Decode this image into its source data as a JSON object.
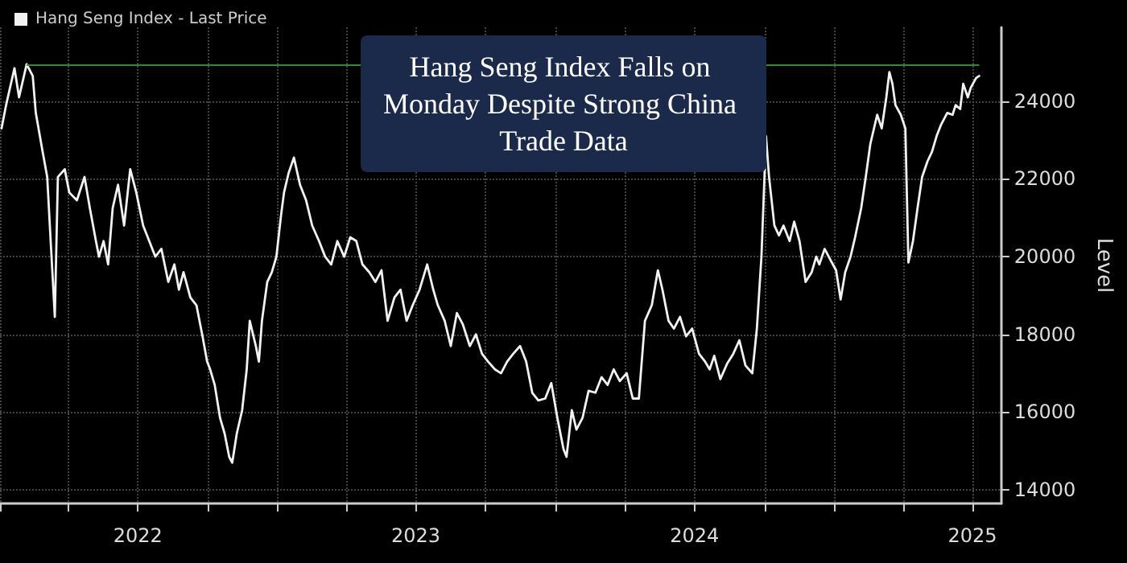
{
  "chart_data": {
    "type": "line",
    "title": "Hang Seng Index Falls on Monday Despite Strong China Trade Data",
    "ylabel": "Level",
    "x": [
      "2022-01-03",
      "2022-01-09",
      "2022-01-20",
      "2022-01-26",
      "2022-02-05",
      "2022-02-13",
      "2022-02-17",
      "2022-02-26",
      "2022-03-04",
      "2022-03-08",
      "2022-03-14",
      "2022-03-18",
      "2022-03-27",
      "2022-04-02",
      "2022-04-12",
      "2022-04-22",
      "2022-04-29",
      "2022-05-07",
      "2022-05-11",
      "2022-05-17",
      "2022-05-23",
      "2022-05-29",
      "2022-06-05",
      "2022-06-13",
      "2022-06-21",
      "2022-06-29",
      "2022-07-08",
      "2022-07-16",
      "2022-07-24",
      "2022-08-01",
      "2022-08-10",
      "2022-08-18",
      "2022-08-24",
      "2022-08-30",
      "2022-09-08",
      "2022-09-16",
      "2022-09-24",
      "2022-09-30",
      "2022-10-04",
      "2022-10-10",
      "2022-10-17",
      "2022-10-23",
      "2022-10-29",
      "2022-11-02",
      "2022-11-08",
      "2022-11-15",
      "2022-11-21",
      "2022-11-25",
      "2022-12-03",
      "2022-12-07",
      "2022-12-11",
      "2022-12-18",
      "2022-12-24",
      "2022-12-30",
      "2023-01-05",
      "2023-01-09",
      "2023-01-15",
      "2023-01-22",
      "2023-01-30",
      "2023-02-07",
      "2023-02-15",
      "2023-02-24",
      "2023-03-04",
      "2023-03-12",
      "2023-03-20",
      "2023-03-29",
      "2023-04-06",
      "2023-04-14",
      "2023-04-22",
      "2023-05-01",
      "2023-05-09",
      "2023-05-17",
      "2023-05-25",
      "2023-06-03",
      "2023-06-11",
      "2023-06-19",
      "2023-06-27",
      "2023-07-06",
      "2023-07-16",
      "2023-07-24",
      "2023-07-30",
      "2023-08-08",
      "2023-08-16",
      "2023-08-24",
      "2023-09-01",
      "2023-09-10",
      "2023-09-18",
      "2023-09-26",
      "2023-10-04",
      "2023-10-13",
      "2023-10-21",
      "2023-10-29",
      "2023-11-06",
      "2023-11-15",
      "2023-11-23",
      "2023-12-01",
      "2023-12-09",
      "2023-12-18",
      "2023-12-26",
      "2024-01-03",
      "2024-01-11",
      "2024-01-15",
      "2024-01-22",
      "2024-01-28",
      "2024-02-05",
      "2024-02-13",
      "2024-02-22",
      "2024-03-01",
      "2024-03-09",
      "2024-03-17",
      "2024-03-25",
      "2024-04-03",
      "2024-04-11",
      "2024-04-19",
      "2024-04-27",
      "2024-05-06",
      "2024-05-14",
      "2024-05-20",
      "2024-05-28",
      "2024-06-04",
      "2024-06-12",
      "2024-06-20",
      "2024-06-28",
      "2024-07-07",
      "2024-07-15",
      "2024-07-21",
      "2024-07-27",
      "2024-08-04",
      "2024-08-13",
      "2024-08-21",
      "2024-08-29",
      "2024-09-06",
      "2024-09-15",
      "2024-09-21",
      "2024-09-27",
      "2024-10-03",
      "2024-10-07",
      "2024-10-14",
      "2024-10-20",
      "2024-10-26",
      "2024-11-03",
      "2024-11-09",
      "2024-11-16",
      "2024-11-24",
      "2024-12-02",
      "2024-12-08",
      "2024-12-12",
      "2024-12-19",
      "2024-12-27",
      "2025-01-03",
      "2025-01-09",
      "2025-01-15",
      "2025-01-22",
      "2025-01-28",
      "2025-02-05",
      "2025-02-11",
      "2025-02-17",
      "2025-02-26",
      "2025-03-04",
      "2025-03-10",
      "2025-03-14",
      "2025-03-18",
      "2025-03-22",
      "2025-03-29",
      "2025-04-04",
      "2025-04-08",
      "2025-04-14",
      "2025-04-20",
      "2025-04-26",
      "2025-05-03",
      "2025-05-09",
      "2025-05-15",
      "2025-05-21",
      "2025-05-29",
      "2025-06-05",
      "2025-06-09",
      "2025-06-15",
      "2025-06-19",
      "2025-06-25",
      "2025-06-29",
      "2025-07-06",
      "2025-07-10"
    ],
    "series": [
      {
        "name": "Hang Seng Index - Last Price",
        "color": "#f2f2f2",
        "values": [
          23300,
          23900,
          24850,
          24100,
          24950,
          24650,
          23700,
          22700,
          22050,
          20600,
          18450,
          22050,
          22250,
          21650,
          21450,
          22050,
          21250,
          20400,
          20000,
          20400,
          19800,
          21250,
          21850,
          20800,
          22250,
          21650,
          20800,
          20400,
          20000,
          20200,
          19350,
          19800,
          19150,
          19600,
          18950,
          18750,
          17950,
          17300,
          17100,
          16700,
          15850,
          15450,
          14850,
          14700,
          15450,
          16050,
          17100,
          18350,
          17700,
          17300,
          18350,
          19350,
          19600,
          20000,
          21050,
          21650,
          22150,
          22550,
          21850,
          21450,
          20800,
          20400,
          20000,
          19800,
          20400,
          20000,
          20500,
          20400,
          19800,
          19600,
          19350,
          19650,
          18350,
          18950,
          19150,
          18350,
          18750,
          19150,
          19800,
          19150,
          18750,
          18350,
          17700,
          18550,
          18250,
          17700,
          18000,
          17500,
          17300,
          17100,
          17000,
          17300,
          17500,
          17700,
          17300,
          16500,
          16300,
          16350,
          16750,
          15850,
          15050,
          14850,
          16050,
          15550,
          15850,
          16550,
          16500,
          16900,
          16700,
          17100,
          16800,
          17000,
          16350,
          16350,
          18350,
          18750,
          19650,
          19150,
          18350,
          18150,
          18450,
          17950,
          18150,
          17500,
          17300,
          17100,
          17450,
          16850,
          17250,
          17500,
          17850,
          17200,
          17000,
          18150,
          20000,
          23100,
          22050,
          20800,
          20550,
          20800,
          20400,
          20900,
          20400,
          19350,
          19600,
          20000,
          19800,
          20200,
          19900,
          19650,
          18900,
          19600,
          20000,
          20500,
          21250,
          22050,
          22900,
          23650,
          23300,
          24100,
          24750,
          24450,
          23900,
          23650,
          23300,
          19850,
          20400,
          21250,
          22050,
          22450,
          22700,
          23100,
          23400,
          23700,
          23650,
          23900,
          23800,
          24450,
          24100,
          24350,
          24600,
          24650
        ]
      }
    ],
    "xlim": [
      "2022-01-01",
      "2025-08-08"
    ],
    "xticks": [
      {
        "value": "2022-01-01",
        "label": null
      },
      {
        "value": "2022-04-01",
        "label": null
      },
      {
        "value": "2022-07-01",
        "label": "2022"
      },
      {
        "value": "2022-10-01",
        "label": null
      },
      {
        "value": "2023-01-01",
        "label": null
      },
      {
        "value": "2023-04-01",
        "label": null
      },
      {
        "value": "2023-07-01",
        "label": "2023"
      },
      {
        "value": "2023-10-01",
        "label": null
      },
      {
        "value": "2024-01-01",
        "label": null
      },
      {
        "value": "2024-04-01",
        "label": null
      },
      {
        "value": "2024-07-01",
        "label": "2024"
      },
      {
        "value": "2024-10-01",
        "label": null
      },
      {
        "value": "2025-01-01",
        "label": null
      },
      {
        "value": "2025-04-01",
        "label": null
      },
      {
        "value": "2025-07-01",
        "label": "2025"
      }
    ],
    "ylim": [
      13650,
      25900
    ],
    "yticks": [
      14000,
      16000,
      18000,
      20000,
      22000,
      24000
    ],
    "ref_lines": [
      {
        "axis": "y",
        "value": 24950,
        "color": "#2e8b2e"
      }
    ],
    "grid": true,
    "legend": "top left",
    "marker": "none",
    "line_style": "solid"
  }
}
